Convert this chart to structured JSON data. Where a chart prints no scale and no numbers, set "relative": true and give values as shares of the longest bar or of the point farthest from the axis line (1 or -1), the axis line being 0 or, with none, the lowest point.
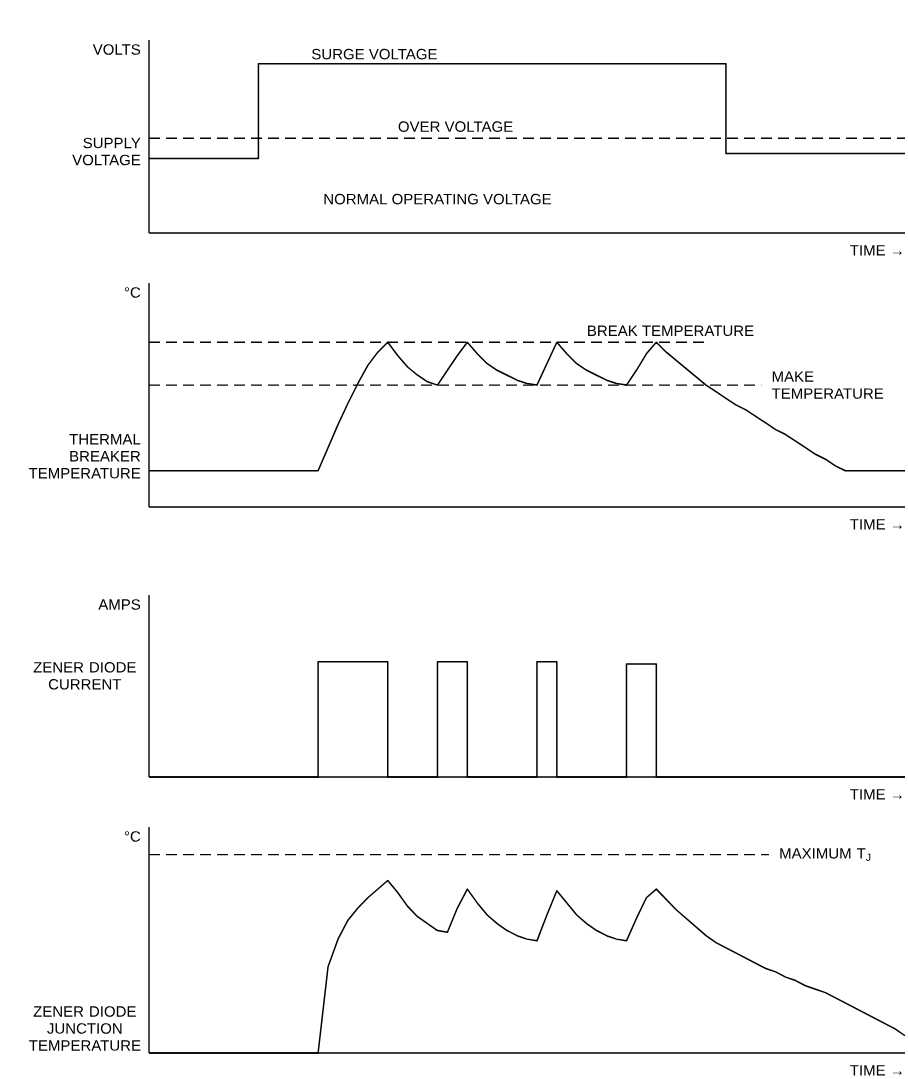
{
  "chart_data": [
    {
      "type": "step",
      "relative": true,
      "ylabel": "VOLTS",
      "xlabel": "TIME →",
      "categories": [
        null,
        null,
        null,
        null,
        null,
        null,
        null,
        null,
        null,
        null,
        null,
        null,
        null,
        null,
        null,
        null,
        null,
        null,
        null,
        null,
        null,
        null,
        null,
        null,
        null,
        null,
        null,
        null,
        null,
        null,
        null,
        null,
        null,
        null,
        null,
        null,
        null,
        null,
        null,
        null,
        null,
        null,
        null,
        null,
        null,
        null,
        null,
        null,
        null,
        null,
        null,
        null,
        null,
        null,
        null,
        null,
        null,
        null,
        null,
        null,
        null,
        null,
        null,
        null,
        null,
        null,
        null,
        null,
        null,
        null,
        null,
        null,
        null,
        null,
        null,
        null,
        null
      ],
      "series": [
        {
          "name": "SUPPLY VOLTAGE",
          "color": "#000000",
          "values": [
            0.44,
            0.44,
            0.44,
            0.44,
            0.44,
            0.44,
            0.44,
            0.44,
            0.44,
            0.44,
            0.44,
            1,
            1,
            1,
            1,
            1,
            1,
            1,
            1,
            1,
            1,
            1,
            1,
            1,
            1,
            1,
            1,
            1,
            1,
            1,
            1,
            1,
            1,
            1,
            1,
            1,
            1,
            1,
            1,
            1,
            1,
            1,
            1,
            1,
            1,
            1,
            1,
            1,
            1,
            1,
            1,
            1,
            1,
            1,
            1,
            1,
            1,
            1,
            0.47,
            0.47,
            0.47,
            0.47,
            0.47,
            0.47,
            0.47,
            0.47,
            0.47,
            0.47,
            0.47,
            0.47,
            0.47,
            0.47,
            0.47,
            0.47,
            0.47,
            0.47,
            0.47
          ]
        }
      ],
      "ref_lines": [
        {
          "axis": "y",
          "value": 0.56,
          "label": "OVER VOLTAGE",
          "line_style": "dashed"
        }
      ],
      "annotations": [
        "SURGE VOLTAGE",
        "NORMAL OPERATING VOLTAGE"
      ]
    },
    {
      "type": "line",
      "relative": true,
      "ylabel": "°C",
      "xlabel": "TIME →",
      "categories": [
        null,
        null,
        null,
        null,
        null,
        null,
        null,
        null,
        null,
        null,
        null,
        null,
        null,
        null,
        null,
        null,
        null,
        null,
        null,
        null,
        null,
        null,
        null,
        null,
        null,
        null,
        null,
        null,
        null,
        null,
        null,
        null,
        null,
        null,
        null,
        null,
        null,
        null,
        null,
        null,
        null,
        null,
        null,
        null,
        null,
        null,
        null,
        null,
        null,
        null,
        null,
        null,
        null,
        null,
        null,
        null,
        null,
        null,
        null,
        null,
        null,
        null,
        null,
        null,
        null,
        null,
        null,
        null,
        null,
        null,
        null,
        null,
        null,
        null,
        null,
        null,
        null
      ],
      "series": [
        {
          "name": "THERMAL BREAKER TEMPERATURE",
          "color": "#000000",
          "values": [
            0.22,
            0.22,
            0.22,
            0.22,
            0.22,
            0.22,
            0.22,
            0.22,
            0.22,
            0.22,
            0.22,
            0.22,
            0.22,
            0.22,
            0.22,
            0.22,
            0.22,
            0.22,
            0.36,
            0.5,
            0.63,
            0.75,
            0.86,
            0.94,
            1,
            0.92,
            0.85,
            0.8,
            0.76,
            0.74,
            0.83,
            0.92,
            1,
            0.93,
            0.87,
            0.83,
            0.8,
            0.77,
            0.75,
            0.74,
            0.87,
            1,
            0.93,
            0.87,
            0.83,
            0.8,
            0.77,
            0.75,
            0.74,
            0.83,
            0.93,
            1,
            0.94,
            0.89,
            0.84,
            0.79,
            0.74,
            0.7,
            0.66,
            0.62,
            0.59,
            0.55,
            0.51,
            0.47,
            0.44,
            0.4,
            0.36,
            0.32,
            0.29,
            0.25,
            0.22,
            0.22,
            0.22,
            0.22,
            0.22,
            0.22,
            0.22
          ]
        }
      ],
      "ref_lines": [
        {
          "axis": "y",
          "value": 1,
          "label": "BREAK TEMPERATURE",
          "line_style": "dashed"
        },
        {
          "axis": "y",
          "value": 0.74,
          "label": "MAKE TEMPERATURE",
          "line_style": "dashed"
        }
      ]
    },
    {
      "type": "step",
      "relative": true,
      "ylabel": "AMPS",
      "xlabel": "TIME →",
      "categories": [
        null,
        null,
        null,
        null,
        null,
        null,
        null,
        null,
        null,
        null,
        null,
        null,
        null,
        null,
        null,
        null,
        null,
        null,
        null,
        null,
        null,
        null,
        null,
        null,
        null,
        null,
        null,
        null,
        null,
        null,
        null,
        null,
        null,
        null,
        null,
        null,
        null,
        null,
        null,
        null,
        null,
        null,
        null,
        null,
        null,
        null,
        null,
        null,
        null,
        null,
        null,
        null,
        null,
        null,
        null,
        null,
        null,
        null,
        null,
        null,
        null,
        null,
        null,
        null,
        null,
        null,
        null,
        null,
        null,
        null,
        null,
        null,
        null,
        null,
        null,
        null,
        null
      ],
      "series": [
        {
          "name": "ZENER DIODE CURRENT",
          "color": "#000000",
          "values": [
            0,
            0,
            0,
            0,
            0,
            0,
            0,
            0,
            0,
            0,
            0,
            0,
            0,
            0,
            0,
            0,
            0,
            1,
            1,
            1,
            1,
            1,
            1,
            1,
            0,
            0,
            0,
            0,
            0,
            1,
            1,
            1,
            0,
            0,
            0,
            0,
            0,
            0,
            0,
            1,
            1,
            0,
            0,
            0,
            0,
            0,
            0,
            0,
            0.98,
            0.98,
            0.98,
            0,
            0,
            0,
            0,
            0,
            0,
            0,
            0,
            0,
            0,
            0,
            0,
            0,
            0,
            0,
            0,
            0,
            0,
            0,
            0,
            0,
            0,
            0,
            0,
            0,
            0
          ]
        }
      ]
    },
    {
      "type": "line",
      "relative": true,
      "ylabel": "°C",
      "xlabel": "TIME →",
      "categories": [
        null,
        null,
        null,
        null,
        null,
        null,
        null,
        null,
        null,
        null,
        null,
        null,
        null,
        null,
        null,
        null,
        null,
        null,
        null,
        null,
        null,
        null,
        null,
        null,
        null,
        null,
        null,
        null,
        null,
        null,
        null,
        null,
        null,
        null,
        null,
        null,
        null,
        null,
        null,
        null,
        null,
        null,
        null,
        null,
        null,
        null,
        null,
        null,
        null,
        null,
        null,
        null,
        null,
        null,
        null,
        null,
        null,
        null,
        null,
        null,
        null,
        null,
        null,
        null,
        null,
        null,
        null,
        null,
        null,
        null,
        null,
        null,
        null,
        null,
        null,
        null,
        null
      ],
      "series": [
        {
          "name": "ZENER DIODE JUNCTION TEMPERATURE",
          "color": "#000000",
          "values": [
            0,
            0,
            0,
            0,
            0,
            0,
            0,
            0,
            0,
            0,
            0,
            0,
            0,
            0,
            0,
            0,
            0,
            0,
            0.5,
            0.66,
            0.77,
            0.84,
            0.9,
            0.95,
            1,
            0.93,
            0.85,
            0.79,
            0.75,
            0.71,
            0.7,
            0.84,
            0.95,
            0.87,
            0.8,
            0.75,
            0.71,
            0.68,
            0.66,
            0.65,
            0.8,
            0.94,
            0.87,
            0.8,
            0.75,
            0.71,
            0.68,
            0.66,
            0.65,
            0.78,
            0.9,
            0.95,
            0.89,
            0.83,
            0.78,
            0.73,
            0.68,
            0.64,
            0.61,
            0.58,
            0.55,
            0.52,
            0.49,
            0.47,
            0.44,
            0.42,
            0.39,
            0.37,
            0.35,
            0.32,
            0.29,
            0.26,
            0.23,
            0.2,
            0.17,
            0.14,
            0.1
          ]
        }
      ],
      "ref_lines": [
        {
          "axis": "y",
          "value": 1.15,
          "label": "MAXIMUM T$_{J}$",
          "line_style": "dashed"
        }
      ]
    }
  ]
}
